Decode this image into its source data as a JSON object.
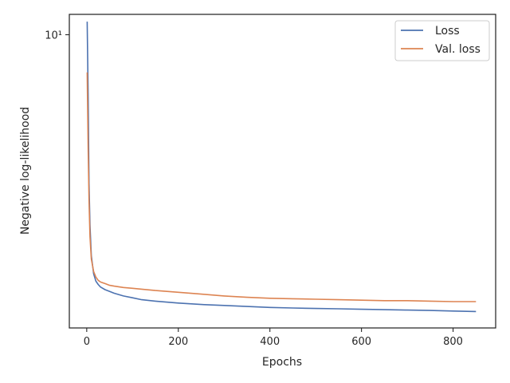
{
  "chart_data": {
    "type": "line",
    "title": "",
    "xlabel": "Epochs",
    "ylabel": "Negative log-likelihood",
    "yscale": "log",
    "xlim": [
      -38,
      893
    ],
    "ylim": [
      1.18,
      11.6
    ],
    "xticks": [
      0,
      200,
      400,
      600,
      800
    ],
    "yticks": [
      {
        "value": 10,
        "label": "10¹"
      }
    ],
    "grid": false,
    "legend_position": "top-right",
    "series": [
      {
        "name": "Loss",
        "color": "#4c72b0",
        "x": [
          1,
          3,
          5,
          7,
          10,
          15,
          20,
          25,
          30,
          40,
          50,
          60,
          80,
          100,
          120,
          150,
          200,
          250,
          300,
          350,
          400,
          450,
          500,
          550,
          600,
          650,
          700,
          750,
          800,
          850
        ],
        "y": [
          11.0,
          6.5,
          3.4,
          2.5,
          2.0,
          1.75,
          1.66,
          1.62,
          1.59,
          1.56,
          1.54,
          1.52,
          1.49,
          1.47,
          1.45,
          1.435,
          1.415,
          1.4,
          1.39,
          1.38,
          1.37,
          1.365,
          1.36,
          1.357,
          1.352,
          1.348,
          1.344,
          1.34,
          1.335,
          1.33
        ]
      },
      {
        "name": "Val. loss",
        "color": "#dd8452",
        "x": [
          1,
          3,
          5,
          7,
          10,
          15,
          20,
          25,
          30,
          40,
          50,
          60,
          80,
          100,
          120,
          150,
          200,
          250,
          300,
          350,
          400,
          450,
          500,
          550,
          600,
          650,
          700,
          750,
          800,
          850
        ],
        "y": [
          7.6,
          4.4,
          3.0,
          2.3,
          1.95,
          1.78,
          1.71,
          1.67,
          1.65,
          1.63,
          1.61,
          1.6,
          1.585,
          1.575,
          1.565,
          1.55,
          1.53,
          1.51,
          1.49,
          1.475,
          1.465,
          1.46,
          1.455,
          1.45,
          1.445,
          1.44,
          1.44,
          1.435,
          1.43,
          1.43
        ]
      }
    ]
  }
}
